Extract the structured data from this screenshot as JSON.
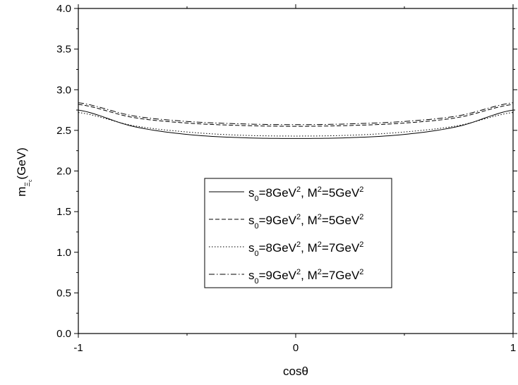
{
  "chart_data": {
    "type": "line",
    "title": "",
    "xlabel": "cosθ",
    "ylabel_main": "m",
    "ylabel_subscript": "Ξ",
    "ylabel_subsubscript": "c",
    "ylabel_unit": "(GeV)",
    "xlim": [
      -1,
      1
    ],
    "ylim": [
      0.0,
      4.0
    ],
    "xticks": [
      -1,
      0,
      1
    ],
    "xtick_labels": [
      "-1",
      "0",
      "1"
    ],
    "yticks": [
      0.0,
      0.5,
      1.0,
      1.5,
      2.0,
      2.5,
      3.0,
      3.5,
      4.0
    ],
    "ytick_labels": [
      "0.0",
      "0.5",
      "1.0",
      "1.5",
      "2.0",
      "2.5",
      "3.0",
      "3.5",
      "4.0"
    ],
    "grid": false,
    "legend_position": "center-right",
    "x": [
      -1.0,
      -0.75,
      -0.5,
      -0.25,
      0.0,
      0.25,
      0.5,
      0.75,
      1.0
    ],
    "series": [
      {
        "name": "s_0=8GeV^2, M^2=5GeV^2",
        "legend": {
          "s": "s",
          "sub0": "0",
          "a": "=8GeV",
          "sup1": "2",
          "b": ", M",
          "sup2": "2",
          "c": "=5GeV",
          "sup3": "2"
        },
        "dash": "solid",
        "values": [
          2.75,
          2.55,
          2.45,
          2.41,
          2.4,
          2.41,
          2.45,
          2.55,
          2.75
        ]
      },
      {
        "name": "s_0=9GeV^2, M^2=5GeV^2",
        "legend": {
          "s": "s",
          "sub0": "0",
          "a": "=9GeV",
          "sup1": "2",
          "b": ", M",
          "sup2": "2",
          "c": "=5GeV",
          "sup3": "2"
        },
        "dash": "dashed",
        "values": [
          2.82,
          2.66,
          2.59,
          2.56,
          2.55,
          2.56,
          2.59,
          2.66,
          2.82
        ]
      },
      {
        "name": "s_0=8GeV^2, M^2=7GeV^2",
        "legend": {
          "s": "s",
          "sub0": "0",
          "a": "=8GeV",
          "sup1": "2",
          "b": ", M",
          "sup2": "2",
          "c": "=7GeV",
          "sup3": "2"
        },
        "dash": "dotted",
        "values": [
          2.72,
          2.56,
          2.48,
          2.44,
          2.43,
          2.44,
          2.48,
          2.56,
          2.72
        ]
      },
      {
        "name": "s_0=9GeV^2, M^2=7GeV^2",
        "legend": {
          "s": "s",
          "sub0": "0",
          "a": "=9GeV",
          "sup1": "2",
          "b": ", M",
          "sup2": "2",
          "c": "=7GeV",
          "sup3": "2"
        },
        "dash": "dashdot",
        "values": [
          2.84,
          2.68,
          2.61,
          2.58,
          2.57,
          2.58,
          2.61,
          2.68,
          2.84
        ]
      }
    ]
  }
}
